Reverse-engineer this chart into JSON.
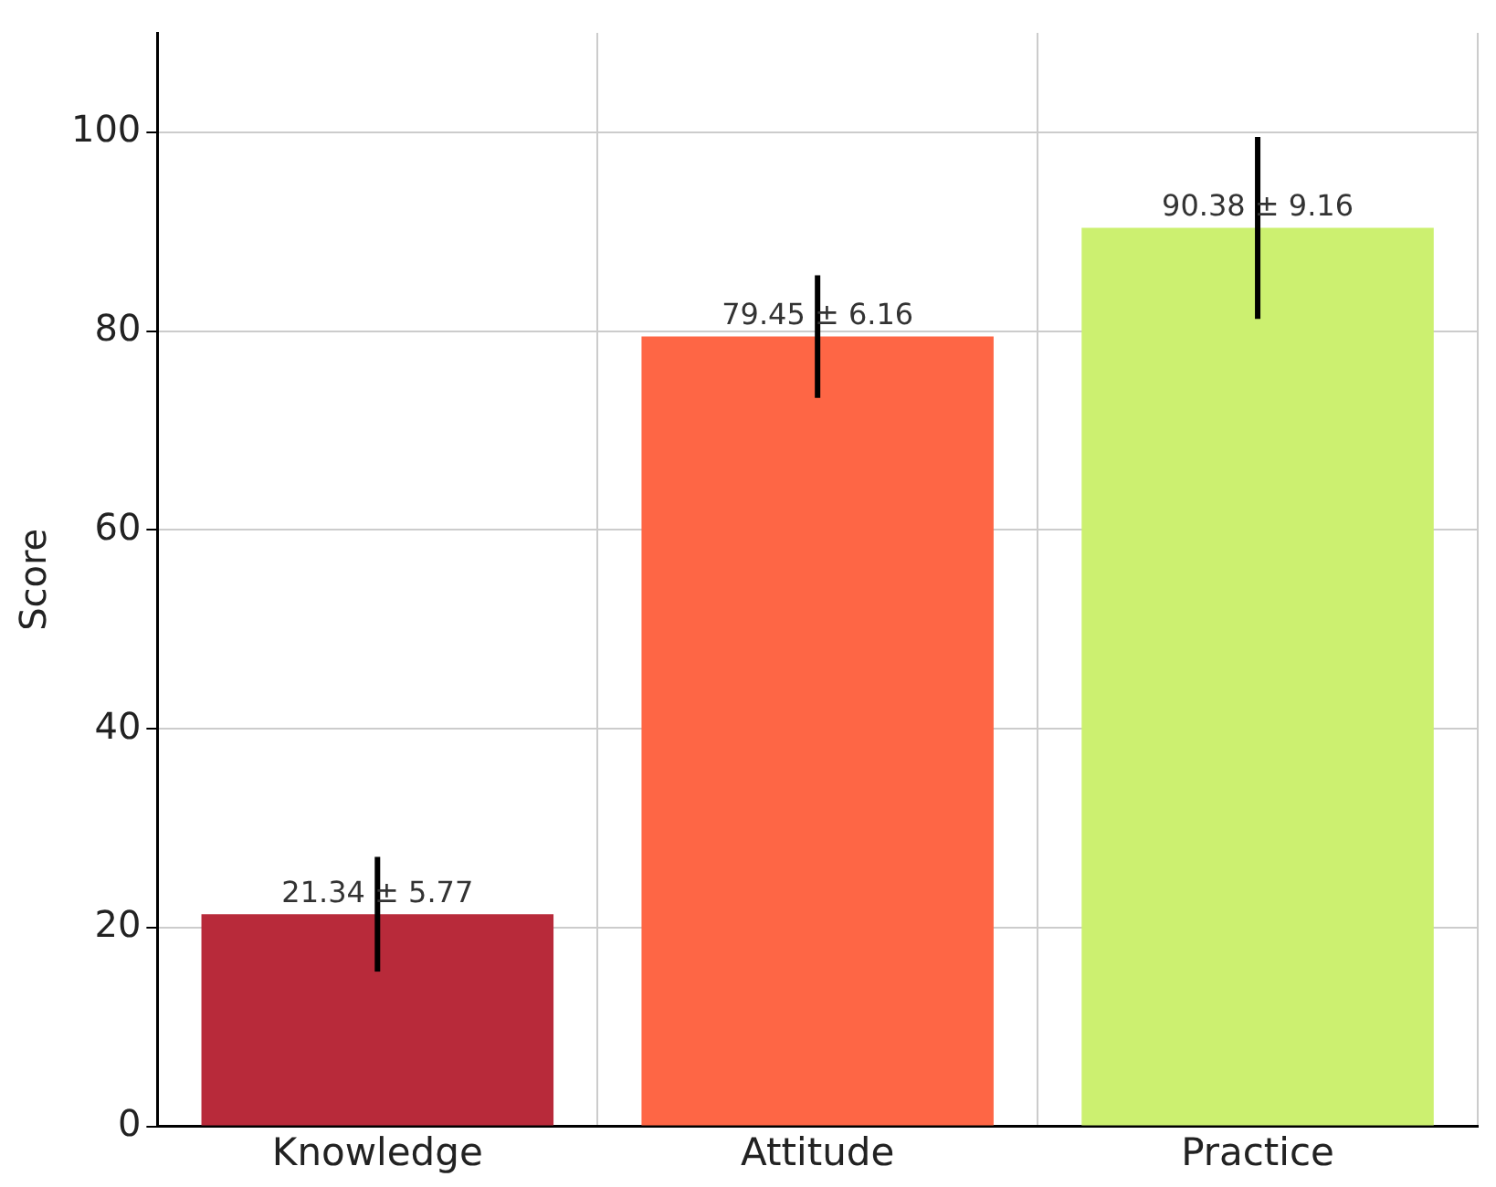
{
  "chart_data": {
    "type": "bar",
    "ylabel": "Score",
    "categories": [
      "Knowledge",
      "Attitude",
      "Practice"
    ],
    "values": [
      21.34,
      79.45,
      90.38
    ],
    "errors": [
      5.77,
      6.16,
      9.16
    ],
    "colors": [
      "#b82a3a",
      "#fe6645",
      "#ccf070"
    ],
    "value_labels": [
      "21.34 ± 5.77",
      "79.45 ± 6.16",
      "90.38 ± 9.16"
    ],
    "ylim": [
      0,
      110
    ],
    "yticks": [
      0,
      20,
      40,
      60,
      80,
      100
    ],
    "grid": true,
    "legend": false
  }
}
